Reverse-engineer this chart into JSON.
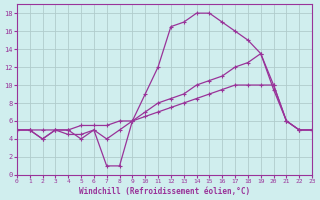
{
  "xlabel": "Windchill (Refroidissement éolien,°C)",
  "background_color": "#d0eeee",
  "grid_color": "#b0cccc",
  "line_color": "#993399",
  "xlim": [
    0,
    23
  ],
  "ylim": [
    0,
    19
  ],
  "xticks": [
    0,
    1,
    2,
    3,
    4,
    5,
    6,
    7,
    8,
    9,
    10,
    11,
    12,
    13,
    14,
    15,
    16,
    17,
    18,
    19,
    20,
    21,
    22,
    23
  ],
  "yticks": [
    0,
    2,
    4,
    6,
    8,
    10,
    12,
    14,
    16,
    18
  ],
  "series1_x": [
    0,
    1,
    2,
    3,
    4,
    5,
    6,
    7,
    8,
    9,
    10,
    11,
    12,
    13,
    14,
    15,
    16,
    17,
    18,
    19,
    20,
    21,
    22,
    23
  ],
  "series1_y": [
    5,
    5,
    4,
    5,
    5,
    4,
    5,
    1,
    1,
    6,
    9,
    12,
    16.5,
    17,
    18,
    18,
    17,
    16,
    15,
    13.5,
    10,
    6,
    5,
    5
  ],
  "series2_x": [
    0,
    1,
    2,
    3,
    4,
    5,
    6,
    7,
    8,
    9,
    10,
    11,
    12,
    13,
    14,
    15,
    16,
    17,
    18,
    19,
    20,
    21,
    22,
    23
  ],
  "series2_y": [
    5,
    5,
    4,
    5,
    4.5,
    4.5,
    5,
    4,
    5,
    6,
    7,
    8,
    8.5,
    9,
    10,
    10.5,
    11,
    12,
    12.5,
    13.5,
    9.5,
    6,
    5,
    5
  ],
  "series3_x": [
    0,
    1,
    2,
    3,
    4,
    5,
    6,
    7,
    8,
    9,
    10,
    11,
    12,
    13,
    14,
    15,
    16,
    17,
    18,
    19,
    20,
    21,
    22,
    23
  ],
  "series3_y": [
    5,
    5,
    5,
    5,
    5,
    5.5,
    5.5,
    5.5,
    6,
    6,
    6.5,
    7,
    7.5,
    8,
    8.5,
    9,
    9.5,
    10,
    10,
    10,
    10,
    6,
    5,
    5
  ]
}
